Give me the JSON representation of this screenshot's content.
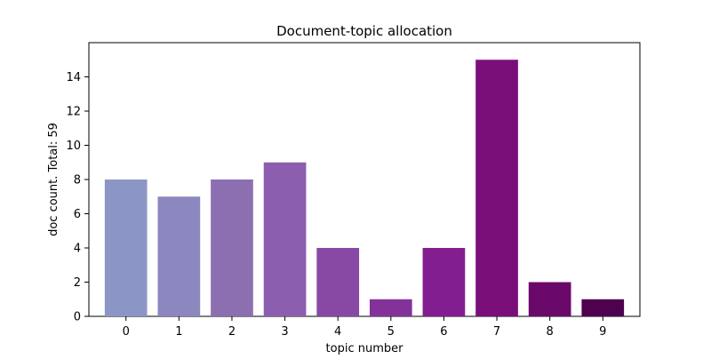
{
  "chart_data": {
    "type": "bar",
    "title": "Document-topic allocation",
    "xlabel": "topic number",
    "ylabel": "doc count. Total: 59",
    "categories": [
      "0",
      "1",
      "2",
      "3",
      "4",
      "5",
      "6",
      "7",
      "8",
      "9"
    ],
    "values": [
      8,
      7,
      8,
      9,
      4,
      1,
      4,
      15,
      2,
      1
    ],
    "ylim": [
      0,
      16
    ],
    "yticks": [
      0,
      2,
      4,
      6,
      8,
      10,
      12,
      14
    ],
    "ytick_labels": [
      "0",
      "2",
      "4",
      "6",
      "8",
      "10",
      "12",
      "14"
    ],
    "bar_colors": [
      "#8c96c6",
      "#8c87bf",
      "#8c6fb1",
      "#8c5eaf",
      "#8849a4",
      "#843299",
      "#831e90",
      "#7a0f7a",
      "#6b096b",
      "#4e014f"
    ],
    "grid": false,
    "legend": "none"
  }
}
